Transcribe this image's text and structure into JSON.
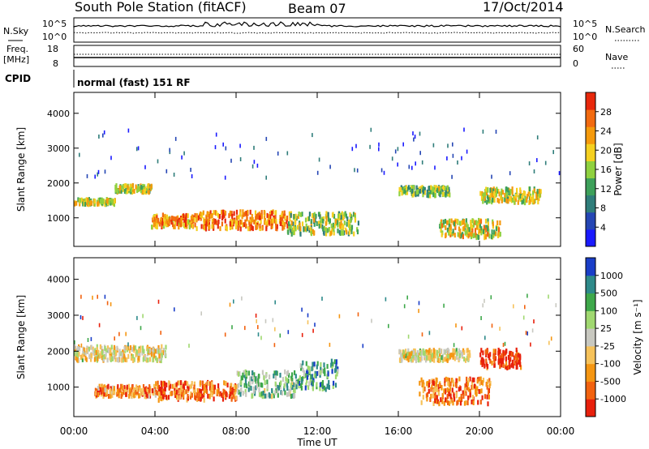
{
  "header": {
    "title": "South Pole Station (fitACF)",
    "beam": "Beam 07",
    "date": "17/Oct/2014"
  },
  "noise_panel": {
    "left_label": "N.Sky",
    "right_label": "N.Search",
    "left_ticks": [
      "10^5",
      "10^0"
    ],
    "right_ticks": [
      "10^5",
      "10^0"
    ]
  },
  "freq_panel": {
    "left_label_line1": "Freq.",
    "left_label_line2": "[MHz]",
    "right_label": "Nave",
    "left_ticks": [
      "18",
      "8"
    ],
    "right_ticks": [
      "60",
      "0"
    ]
  },
  "cpid_panel": {
    "label": "CPID",
    "text": "normal (fast) 151 RF"
  },
  "colors": {
    "power_scale": [
      "#1a1aff",
      "#2546b4",
      "#2f7d7a",
      "#3da05a",
      "#8fd13f",
      "#f5d020",
      "#f59a0c",
      "#f26a10",
      "#e8280c"
    ],
    "velocity_scale": [
      "#e8200c",
      "#f2620f",
      "#f59612",
      "#f6c25a",
      "#c8c8c0",
      "#a0d870",
      "#3ea84a",
      "#2e8a8a",
      "#1a3ec8"
    ]
  },
  "chart_data": [
    {
      "type": "heatmap",
      "panel": "power",
      "ylabel": "Slant Range [km]",
      "y_ticks": [
        "1000",
        "2000",
        "3000",
        "4000"
      ],
      "ylim": [
        180,
        4600
      ],
      "x_ticks": [
        "00:00",
        "04:00",
        "08:00",
        "12:00",
        "16:00",
        "20:00",
        "00:00"
      ],
      "xlim_hours": [
        0,
        24
      ],
      "colorbar_label": "Power [dB]",
      "colorbar_ticks": [
        "4",
        "8",
        "12",
        "16",
        "20",
        "24",
        "28"
      ],
      "bands": [
        {
          "t0": 0.0,
          "t1": 2.0,
          "r0": 1450,
          "r1": 1600,
          "c": 0.55
        },
        {
          "t0": 2.0,
          "t1": 3.8,
          "r0": 1800,
          "r1": 2000,
          "c": 0.55
        },
        {
          "t0": 3.8,
          "t1": 6.0,
          "r0": 800,
          "r1": 1150,
          "c": 0.75
        },
        {
          "t0": 6.0,
          "t1": 10.5,
          "r0": 750,
          "r1": 1250,
          "c": 0.8
        },
        {
          "t0": 10.5,
          "t1": 14.0,
          "r0": 600,
          "r1": 1200,
          "c": 0.5
        },
        {
          "t0": 16.0,
          "t1": 18.5,
          "r0": 1700,
          "r1": 1950,
          "c": 0.45
        },
        {
          "t0": 18.0,
          "t1": 21.0,
          "r0": 500,
          "r1": 1000,
          "c": 0.6
        },
        {
          "t0": 20.0,
          "t1": 23.0,
          "r0": 1500,
          "r1": 1900,
          "c": 0.55
        }
      ]
    },
    {
      "type": "heatmap",
      "panel": "velocity",
      "ylabel": "Slant Range [km]",
      "y_ticks": [
        "1000",
        "2000",
        "3000",
        "4000"
      ],
      "ylim": [
        180,
        4600
      ],
      "x_ticks": [
        "00:00",
        "04:00",
        "08:00",
        "12:00",
        "16:00",
        "20:00",
        "00:00"
      ],
      "xlim_hours": [
        0,
        24
      ],
      "xlabel": "Time UT",
      "colorbar_label": "Velocity [m s⁻¹]",
      "colorbar_ticks": [
        "-1000",
        "-500",
        "-100",
        "-25",
        "25",
        "100",
        "500",
        "1000"
      ],
      "bands": [
        {
          "t0": 0.0,
          "t1": 4.5,
          "r0": 1800,
          "r1": 2200,
          "c": 0.45
        },
        {
          "t0": 1.0,
          "t1": 4.0,
          "r0": 800,
          "r1": 1100,
          "c": 0.25
        },
        {
          "t0": 4.0,
          "t1": 8.0,
          "r0": 700,
          "r1": 1200,
          "c": 0.2
        },
        {
          "t0": 8.0,
          "t1": 11.0,
          "r0": 800,
          "r1": 1500,
          "c": 0.65
        },
        {
          "t0": 11.0,
          "t1": 13.0,
          "r0": 1000,
          "r1": 1800,
          "c": 0.75
        },
        {
          "t0": 16.0,
          "t1": 19.5,
          "r0": 1800,
          "r1": 2100,
          "c": 0.45
        },
        {
          "t0": 17.0,
          "t1": 20.5,
          "r0": 600,
          "r1": 1300,
          "c": 0.2
        },
        {
          "t0": 20.0,
          "t1": 22.0,
          "r0": 1600,
          "r1": 2100,
          "c": 0.05
        }
      ]
    }
  ]
}
